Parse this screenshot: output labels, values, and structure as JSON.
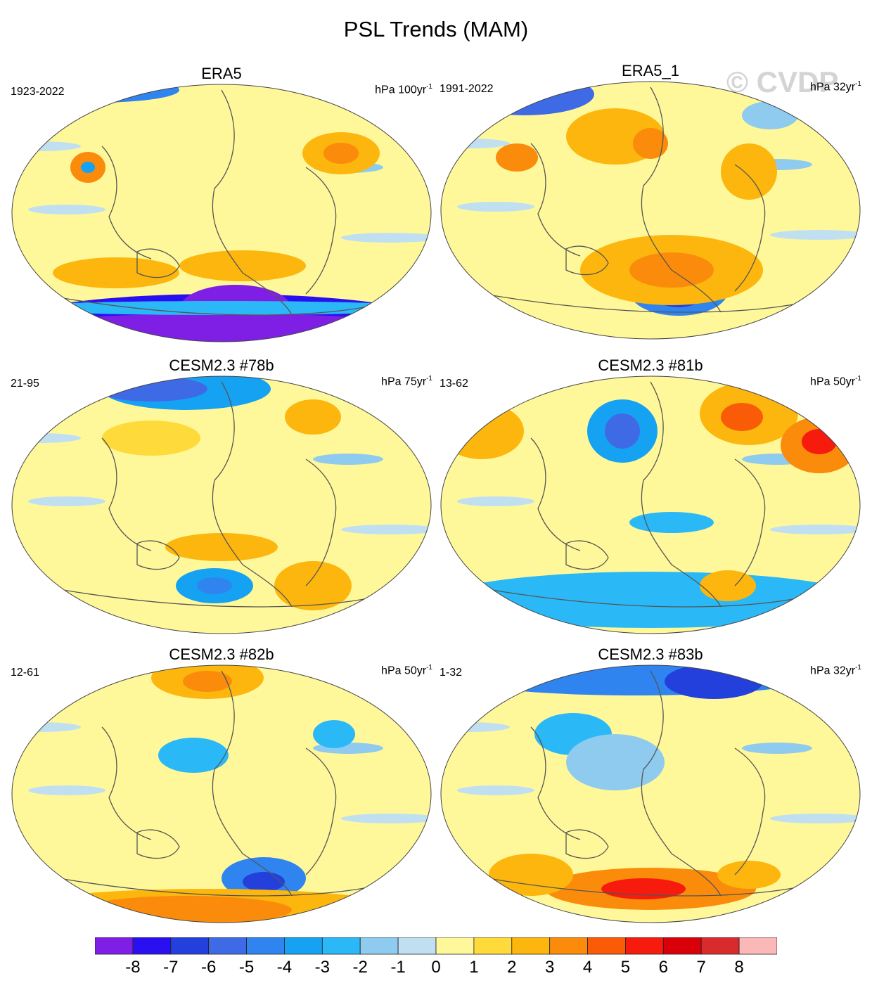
{
  "title": "PSL Trends (MAM)",
  "watermark": "© CVDP",
  "chart_data": {
    "type": "heatmap",
    "projection": "robinson",
    "units": "hPa",
    "panels": [
      {
        "title": "ERA5",
        "period": "1923-2022",
        "units_label": "hPa 100yr",
        "per": "-1"
      },
      {
        "title": "ERA5_1",
        "period": "1991-2022",
        "units_label": "hPa 32yr",
        "per": "-1"
      },
      {
        "title": "CESM2.3 #78b",
        "period": "21-95",
        "units_label": "hPa 75yr",
        "per": "-1"
      },
      {
        "title": "CESM2.3 #81b",
        "period": "13-62",
        "units_label": "hPa 50yr",
        "per": "-1"
      },
      {
        "title": "CESM2.3 #82b",
        "period": "12-61",
        "units_label": "hPa 50yr",
        "per": "-1"
      },
      {
        "title": "CESM2.3 #83b",
        "period": "1-32",
        "units_label": "hPa 32yr",
        "per": "-1"
      }
    ],
    "colorbar": {
      "levels": [
        "-8",
        "-7",
        "-6",
        "-5",
        "-4",
        "-3",
        "-2",
        "-1",
        "0",
        "1",
        "2",
        "3",
        "4",
        "5",
        "6",
        "7",
        "8"
      ],
      "colors": [
        "#7f1fe6",
        "#2a10f0",
        "#2440dc",
        "#3f6ae6",
        "#2f84f0",
        "#16a2f2",
        "#2ab8f7",
        "#8fcbef",
        "#c0e0f2",
        "#fff89a",
        "#fedb3b",
        "#fcb60d",
        "#fb8b0b",
        "#f95b06",
        "#f61b0d",
        "#d9000a",
        "#d92b2b",
        "#fbb8b8"
      ]
    }
  }
}
